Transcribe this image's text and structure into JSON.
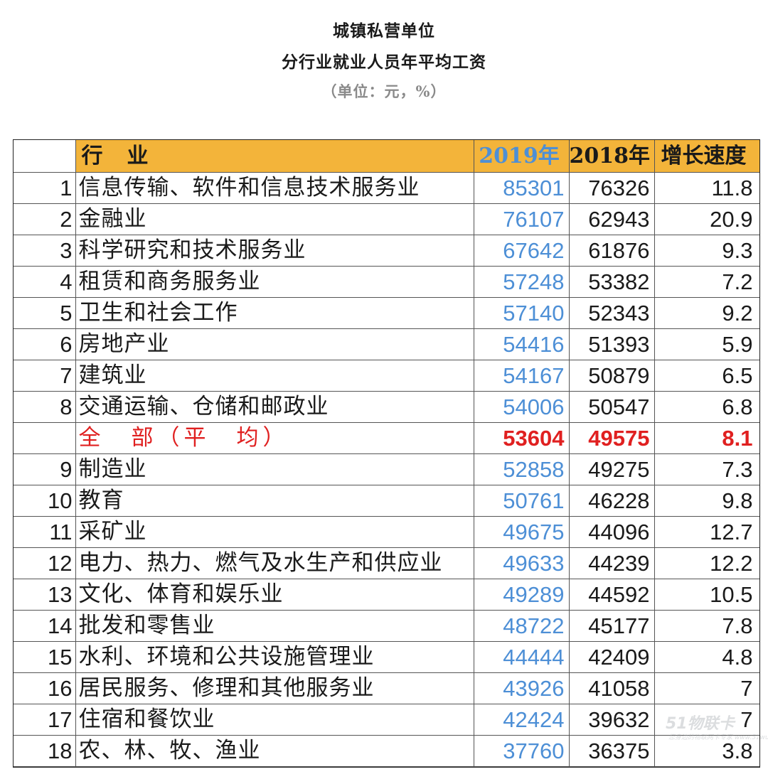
{
  "title": {
    "line1": "城镇私营单位",
    "line2": "分行业就业人员年平均工资",
    "unit": "（单位：元，%）"
  },
  "table": {
    "headers": {
      "industry": "行　业",
      "y2019": "2019年",
      "y2018": "2018年",
      "growth": "增长速度"
    },
    "rows_top": [
      {
        "num": "1",
        "name": "信息传输、软件和信息技术服务业",
        "y2019": "85301",
        "y2018": "76326",
        "growth": "11.8"
      },
      {
        "num": "2",
        "name": "金融业",
        "y2019": "76107",
        "y2018": "62943",
        "growth": "20.9"
      },
      {
        "num": "3",
        "name": "科学研究和技术服务业",
        "y2019": "67642",
        "y2018": "61876",
        "growth": "9.3"
      },
      {
        "num": "4",
        "name": "租赁和商务服务业",
        "y2019": "57248",
        "y2018": "53382",
        "growth": "7.2"
      },
      {
        "num": "5",
        "name": "卫生和社会工作",
        "y2019": "57140",
        "y2018": "52343",
        "growth": "9.2"
      },
      {
        "num": "6",
        "name": "房地产业",
        "y2019": "54416",
        "y2018": "51393",
        "growth": "5.9"
      },
      {
        "num": "7",
        "name": "建筑业",
        "y2019": "54167",
        "y2018": "50879",
        "growth": "6.5"
      },
      {
        "num": "8",
        "name": "交通运输、仓储和邮政业",
        "y2019": "54006",
        "y2018": "50547",
        "growth": "6.8"
      }
    ],
    "total": {
      "num": "",
      "name": "全　部（平　均）",
      "y2019": "53604",
      "y2018": "49575",
      "growth": "8.1"
    },
    "rows_bottom": [
      {
        "num": "9",
        "name": "制造业",
        "y2019": "52858",
        "y2018": "49275",
        "growth": "7.3"
      },
      {
        "num": "10",
        "name": "教育",
        "y2019": "50761",
        "y2018": "46228",
        "growth": "9.8"
      },
      {
        "num": "11",
        "name": "采矿业",
        "y2019": "49675",
        "y2018": "44096",
        "growth": "12.7"
      },
      {
        "num": "12",
        "name": "电力、热力、燃气及水生产和供应业",
        "y2019": "49633",
        "y2018": "44239",
        "growth": "12.2"
      },
      {
        "num": "13",
        "name": "文化、体育和娱乐业",
        "y2019": "49289",
        "y2018": "44592",
        "growth": "10.5"
      },
      {
        "num": "14",
        "name": "批发和零售业",
        "y2019": "48722",
        "y2018": "45177",
        "growth": "7.8"
      },
      {
        "num": "15",
        "name": "水利、环境和公共设施管理业",
        "y2019": "44444",
        "y2018": "42409",
        "growth": "4.8"
      },
      {
        "num": "16",
        "name": "居民服务、修理和其他服务业",
        "y2019": "43926",
        "y2018": "41058",
        "growth": "7"
      },
      {
        "num": "17",
        "name": "住宿和餐饮业",
        "y2019": "42424",
        "y2018": "39632",
        "growth": "7"
      },
      {
        "num": "18",
        "name": "农、林、牧、渔业",
        "y2019": "37760",
        "y2018": "36375",
        "growth": "3.8"
      }
    ]
  },
  "watermark": {
    "logo": "51物联卡",
    "sub": "您身边的物联网卡专家 www.51wulianka.com"
  },
  "colors": {
    "header_bg": "#f3b43a",
    "y2019_text": "#4d8fd6",
    "total_text": "#e02020"
  }
}
